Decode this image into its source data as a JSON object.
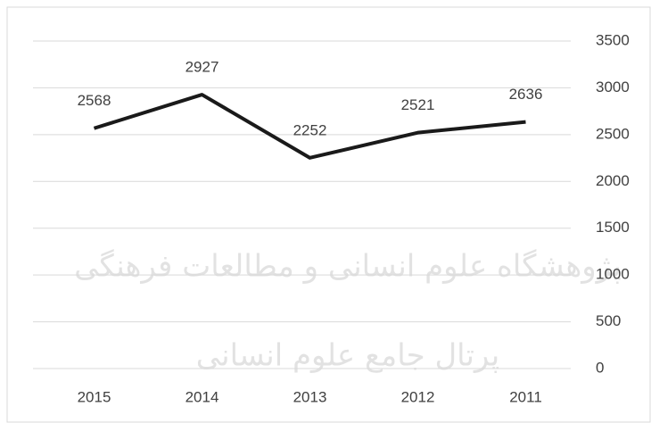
{
  "chart_data": {
    "type": "line",
    "categories": [
      "2015",
      "2014",
      "2013",
      "2012",
      "2011"
    ],
    "series": [
      {
        "color": "#1a1a1a",
        "values": [
          2568,
          2927,
          2252,
          2521,
          2636
        ]
      }
    ],
    "ylim": [
      0,
      3500
    ],
    "yticks": [
      0,
      500,
      1000,
      1500,
      2000,
      2500,
      3000,
      3500
    ],
    "grid": true,
    "data_labels": true
  },
  "watermark": {
    "lines": [
      "پژوهشگاه علوم انسانی و مطالعات فرهنگی",
      "پرتال جامع علوم انسانی"
    ]
  }
}
